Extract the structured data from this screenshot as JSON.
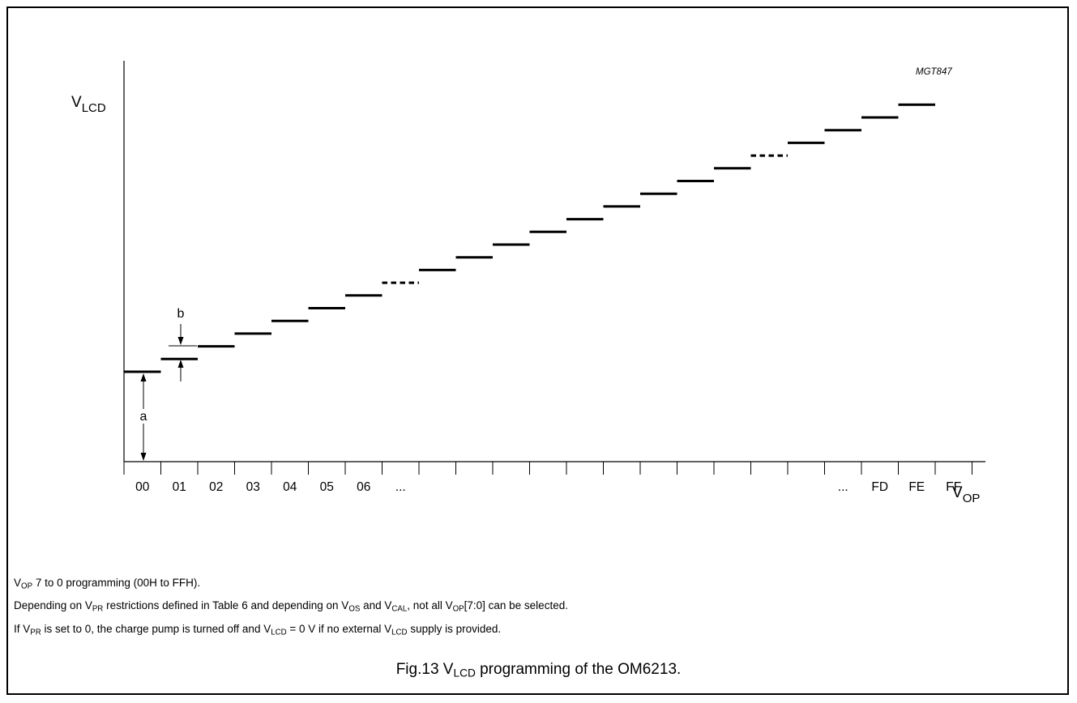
{
  "figure_id": "MGT847",
  "y_axis": {
    "main": "V",
    "sub": "LCD"
  },
  "x_axis": {
    "main": "V",
    "sub": "OP"
  },
  "annotations": {
    "a": "a",
    "b": "b"
  },
  "x_labels": [
    "00",
    "01",
    "02",
    "03",
    "04",
    "05",
    "06",
    "...",
    "",
    "",
    "",
    "",
    "",
    "",
    "",
    "",
    "",
    "",
    "",
    "...",
    "FD",
    "FE",
    "FF"
  ],
  "steps": [
    {
      "index": 0,
      "level": 0,
      "style": "solid"
    },
    {
      "index": 1,
      "level": 1,
      "style": "solid"
    },
    {
      "index": 2,
      "level": 2,
      "style": "solid"
    },
    {
      "index": 3,
      "level": 3,
      "style": "solid"
    },
    {
      "index": 4,
      "level": 4,
      "style": "solid"
    },
    {
      "index": 5,
      "level": 5,
      "style": "solid"
    },
    {
      "index": 6,
      "level": 6,
      "style": "solid"
    },
    {
      "index": 7,
      "level": 7,
      "style": "dotted"
    },
    {
      "index": 8,
      "level": 8,
      "style": "solid"
    },
    {
      "index": 9,
      "level": 9,
      "style": "solid"
    },
    {
      "index": 10,
      "level": 10,
      "style": "solid"
    },
    {
      "index": 11,
      "level": 11,
      "style": "solid"
    },
    {
      "index": 12,
      "level": 12,
      "style": "solid"
    },
    {
      "index": 13,
      "level": 13,
      "style": "solid"
    },
    {
      "index": 14,
      "level": 14,
      "style": "solid"
    },
    {
      "index": 15,
      "level": 15,
      "style": "solid"
    },
    {
      "index": 16,
      "level": 16,
      "style": "solid"
    },
    {
      "index": 17,
      "level": 17,
      "style": "dotted"
    },
    {
      "index": 18,
      "level": 18,
      "style": "solid"
    },
    {
      "index": 19,
      "level": 19,
      "style": "solid"
    },
    {
      "index": 20,
      "level": 20,
      "style": "solid"
    },
    {
      "index": 21,
      "level": 21,
      "style": "solid"
    }
  ],
  "notes": {
    "n1": {
      "a": "V",
      "a_sub": "OP",
      "b": " 7 to 0 programming (00H to FFH)."
    },
    "n2": {
      "a": "Depending on V",
      "a_sub": "PR",
      "b": " restrictions defined in Table 6 and depending on V",
      "b_sub": "OS",
      "c": " and V",
      "c_sub": "CAL",
      "d": ", not all V",
      "d_sub": "OP",
      "e": "[7:0] can be selected."
    },
    "n3": {
      "a": "If V",
      "a_sub": "PR",
      "b": " is set to 0, the charge pump is turned off and V",
      "b_sub": "LCD",
      "c": " = 0 V if no external V",
      "c_sub": "LCD",
      "d": " supply is provided."
    }
  },
  "caption": {
    "a": "Fig.13  V",
    "a_sub": "LCD",
    "b": " programming of the OM6213."
  }
}
